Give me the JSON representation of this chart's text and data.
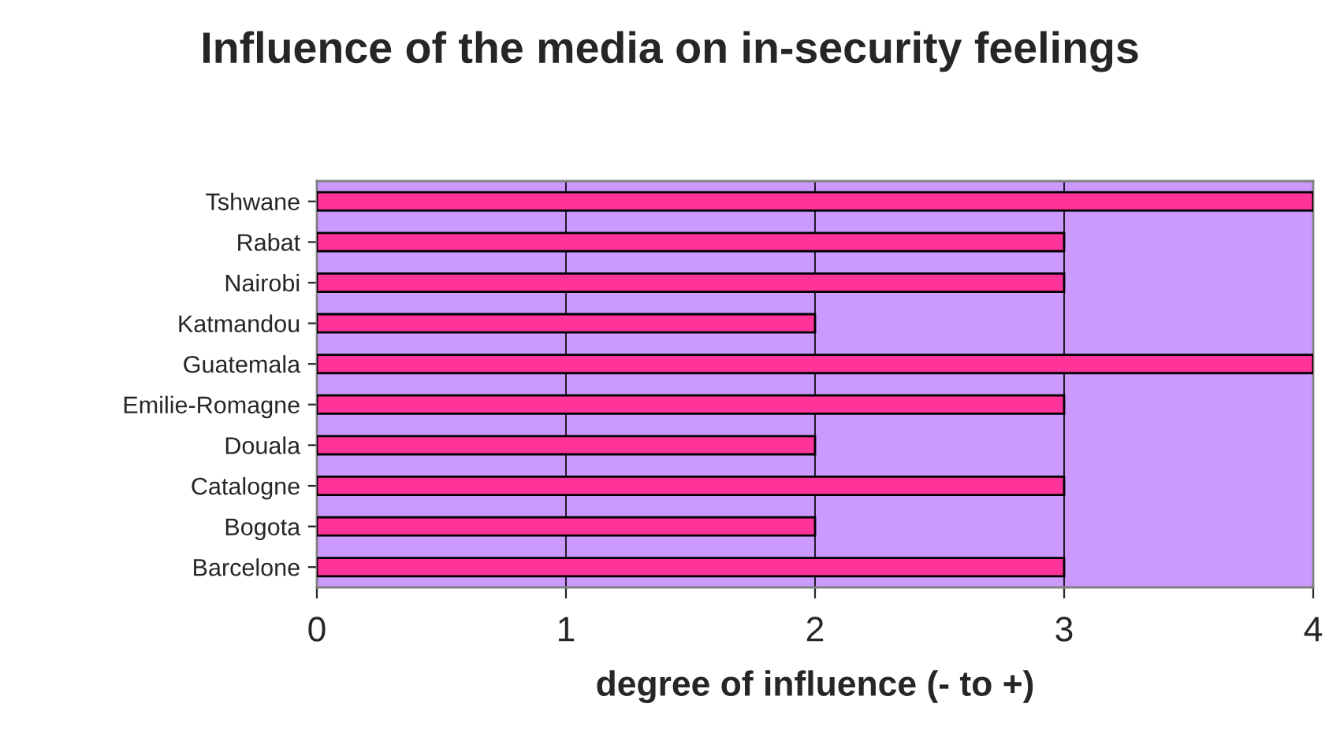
{
  "chart_data": {
    "type": "bar",
    "orientation": "horizontal",
    "title": "Influence of the media on in-security feelings",
    "xlabel": "degree of influence (- to +)",
    "categories": [
      "Tshwane",
      "Rabat",
      "Nairobi",
      "Katmandou",
      "Guatemala",
      "Emilie-Romagne",
      "Douala",
      "Catalogne",
      "Bogota",
      "Barcelone"
    ],
    "values": [
      4,
      3,
      3,
      2,
      4,
      3,
      2,
      3,
      2,
      3
    ],
    "color": "#ff3399",
    "xlim": [
      0,
      4
    ],
    "xticks": [
      0,
      1,
      2,
      3,
      4
    ],
    "grid": "x",
    "legend": false
  }
}
